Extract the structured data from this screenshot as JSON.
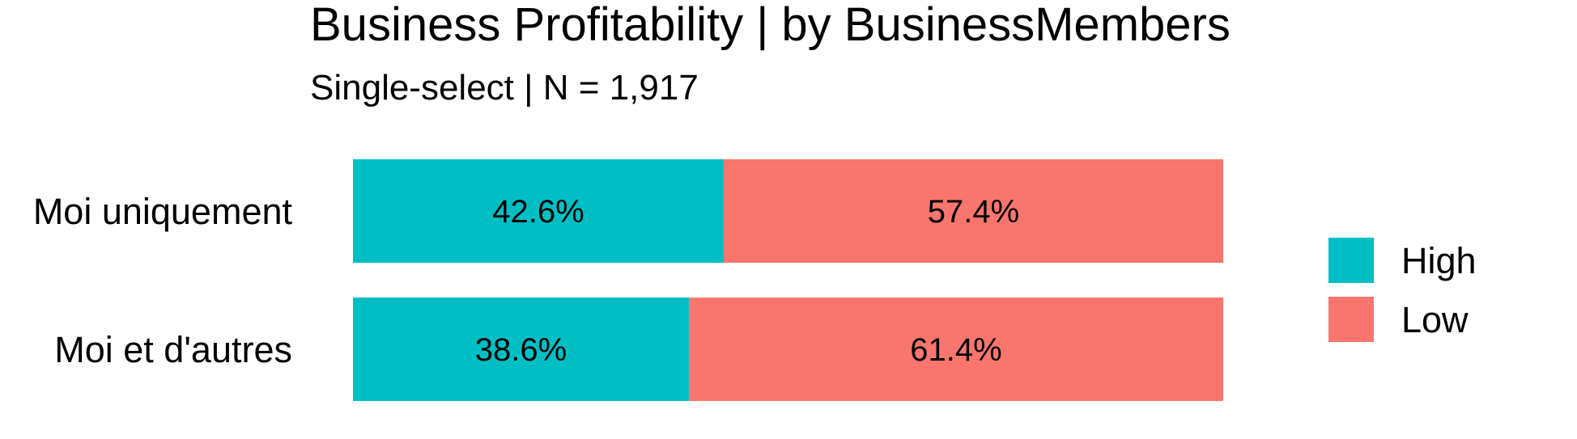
{
  "chart_data": {
    "type": "bar",
    "orientation": "horizontal",
    "stacked": true,
    "title": "Business Profitability | by BusinessMembers",
    "subtitle": "Single-select | N = 1,917",
    "categories": [
      "Moi uniquement",
      "Moi et d'autres"
    ],
    "series": [
      {
        "name": "High",
        "color": "#00BFC4",
        "values": [
          42.6,
          38.6
        ],
        "labels": [
          "42.6%",
          "38.6%"
        ]
      },
      {
        "name": "Low",
        "color": "#F8766D",
        "values": [
          57.4,
          61.4
        ],
        "labels": [
          "57.4%",
          "61.4%"
        ]
      }
    ],
    "xlim": [
      0,
      100
    ],
    "unit": "%",
    "grid": false,
    "legend": {
      "position": "right",
      "entries": [
        "High",
        "Low"
      ]
    }
  }
}
